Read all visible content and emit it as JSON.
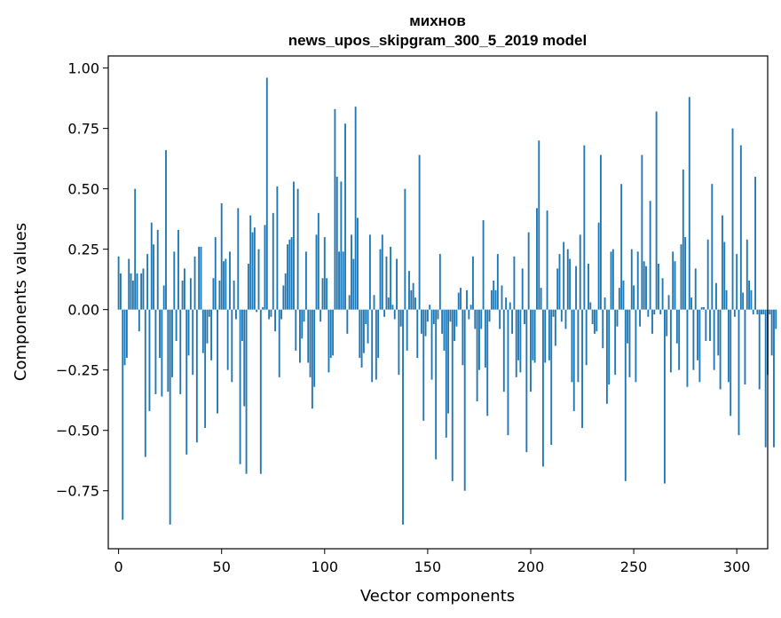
{
  "chart_data": {
    "type": "bar",
    "title": "михнов",
    "subtitle": "news_upos_skipgram_300_5_2019 model",
    "xlabel": "Vector components",
    "ylabel": "Components values",
    "xlim": [
      -5,
      315
    ],
    "ylim": [
      -0.99,
      1.05
    ],
    "x_ticks": [
      0,
      50,
      100,
      150,
      200,
      250,
      300
    ],
    "x_tick_labels": [
      "0",
      "50",
      "100",
      "150",
      "200",
      "250",
      "300"
    ],
    "y_ticks": [
      -0.75,
      -0.5,
      -0.25,
      0.0,
      0.25,
      0.5,
      0.75,
      1.0
    ],
    "y_tick_labels": [
      "−0.75",
      "−0.50",
      "−0.25",
      "0.00",
      "0.25",
      "0.50",
      "0.75",
      "1.00"
    ],
    "bar_color": "#1f77b4",
    "grid": false,
    "legend": "none",
    "values": [
      0.22,
      0.15,
      -0.87,
      -0.23,
      -0.2,
      0.21,
      0.15,
      0.12,
      0.5,
      0.15,
      -0.09,
      0.15,
      0.17,
      -0.61,
      0.23,
      -0.42,
      0.36,
      0.27,
      -0.35,
      0.33,
      -0.2,
      -0.36,
      0.1,
      0.66,
      -0.34,
      -0.89,
      -0.28,
      0.24,
      -0.13,
      0.33,
      -0.35,
      0.12,
      0.17,
      -0.6,
      -0.19,
      0.13,
      -0.27,
      0.22,
      -0.55,
      0.26,
      0.26,
      -0.18,
      -0.49,
      -0.14,
      -0.03,
      -0.21,
      0.13,
      0.3,
      -0.43,
      0.12,
      0.44,
      0.2,
      0.21,
      -0.25,
      0.24,
      -0.3,
      0.12,
      -0.04,
      0.42,
      -0.64,
      -0.13,
      -0.4,
      -0.68,
      0.19,
      0.39,
      0.32,
      0.34,
      -0.01,
      0.25,
      -0.68,
      0.01,
      0.35,
      0.96,
      -0.04,
      -0.03,
      0.4,
      -0.09,
      0.51,
      -0.28,
      -0.04,
      0.1,
      0.15,
      0.27,
      0.29,
      0.3,
      0.53,
      -0.17,
      0.5,
      -0.22,
      -0.12,
      -0.05,
      0.24,
      -0.22,
      -0.28,
      -0.41,
      -0.32,
      0.31,
      0.4,
      -0.05,
      0.13,
      0.3,
      0.13,
      -0.26,
      -0.2,
      -0.19,
      0.83,
      0.55,
      0.24,
      0.53,
      0.24,
      0.77,
      -0.1,
      0.06,
      0.31,
      0.21,
      0.84,
      0.38,
      -0.2,
      -0.24,
      -0.18,
      -0.06,
      -0.14,
      0.31,
      -0.3,
      0.06,
      -0.29,
      -0.2,
      0.25,
      0.31,
      -0.03,
      0.22,
      0.05,
      0.26,
      0.02,
      -0.04,
      0.21,
      -0.27,
      -0.07,
      -0.89,
      0.5,
      -0.17,
      0.16,
      0.08,
      0.11,
      0.05,
      -0.2,
      0.64,
      -0.1,
      -0.46,
      -0.11,
      -0.05,
      0.02,
      -0.29,
      -0.06,
      -0.62,
      -0.04,
      0.23,
      -0.1,
      -0.17,
      -0.53,
      -0.43,
      -0.05,
      -0.71,
      -0.13,
      -0.07,
      0.07,
      0.09,
      -0.23,
      -0.75,
      0.08,
      -0.04,
      0.02,
      0.22,
      -0.08,
      -0.38,
      -0.25,
      -0.08,
      0.37,
      -0.24,
      -0.44,
      -0.05,
      0.08,
      0.12,
      0.08,
      0.23,
      -0.08,
      0.1,
      -0.34,
      0.05,
      -0.52,
      0.03,
      -0.1,
      0.22,
      -0.28,
      -0.21,
      -0.26,
      0.17,
      -0.06,
      -0.59,
      0.32,
      -0.34,
      -0.21,
      -0.22,
      0.42,
      0.7,
      0.09,
      -0.65,
      -0.22,
      0.41,
      -0.21,
      -0.56,
      -0.03,
      -0.15,
      0.17,
      0.23,
      -0.05,
      0.28,
      -0.08,
      0.25,
      0.21,
      -0.3,
      -0.42,
      0.18,
      -0.3,
      0.31,
      -0.49,
      0.68,
      -0.23,
      0.19,
      0.03,
      -0.06,
      -0.1,
      -0.09,
      0.36,
      0.64,
      -0.16,
      0.05,
      -0.39,
      -0.31,
      0.24,
      0.25,
      -0.27,
      -0.07,
      0.09,
      0.52,
      0.12,
      -0.71,
      -0.14,
      -0.28,
      0.25,
      0.1,
      -0.3,
      0.24,
      -0.07,
      0.64,
      0.2,
      0.18,
      -0.03,
      0.45,
      -0.1,
      -0.02,
      0.82,
      0.19,
      -0.02,
      0.13,
      -0.72,
      -0.11,
      0.06,
      -0.26,
      0.24,
      0.2,
      -0.14,
      -0.25,
      0.27,
      0.58,
      0.3,
      -0.32,
      0.88,
      0.05,
      -0.25,
      0.17,
      -0.21,
      -0.3,
      0.01,
      0.01,
      -0.13,
      0.29,
      -0.13,
      0.52,
      -0.25,
      0.11,
      -0.19,
      -0.33,
      0.39,
      0.28,
      0.08,
      -0.3,
      -0.44,
      0.75,
      -0.03,
      0.23,
      -0.52,
      0.68,
      0.07,
      -0.31,
      0.29,
      0.12,
      0.08,
      -0.02,
      0.55,
      -0.02,
      -0.33,
      -0.02,
      -0.02,
      -0.57,
      -0.27,
      -0.02,
      -0.19,
      -0.57,
      -0.08
    ]
  }
}
